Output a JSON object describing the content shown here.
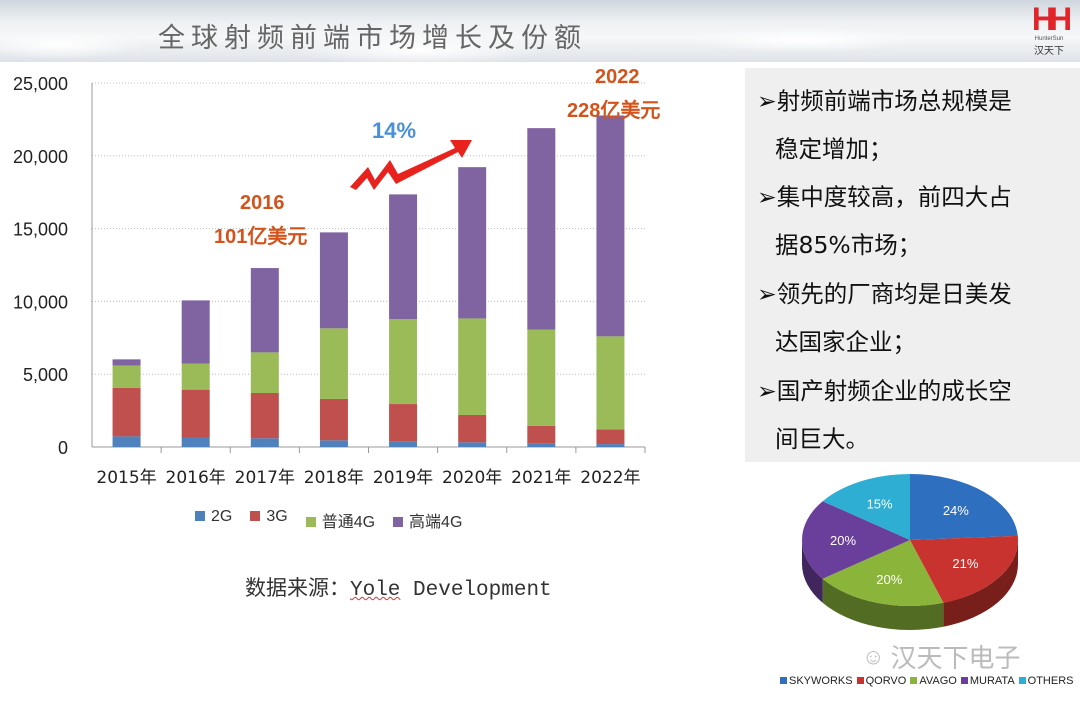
{
  "header": {
    "title": "全球射频前端市场增长及份额",
    "logo_en": "HunterSun",
    "logo_cn": "汉天下"
  },
  "colors": {
    "2G": "#4f81bd",
    "3G": "#c0504d",
    "4G": "#9bbb59",
    "hi4G": "#8064a2",
    "annotation": "#d2541c",
    "growth": "#4a90d9"
  },
  "chart_data": {
    "type": "bar",
    "stacked": true,
    "categories": [
      "2015年",
      "2016年",
      "2017年",
      "2018年",
      "2019年",
      "2020年",
      "2021年",
      "2022年"
    ],
    "series": [
      {
        "name": "2G",
        "values": [
          730,
          620,
          600,
          460,
          390,
          320,
          250,
          200
        ]
      },
      {
        "name": "3G",
        "values": [
          3340,
          3320,
          3110,
          2840,
          2560,
          1880,
          1210,
          1010
        ]
      },
      {
        "name": "普通4G",
        "values": [
          1530,
          1780,
          2790,
          4850,
          5840,
          6630,
          6600,
          6390
        ]
      },
      {
        "name": "高端4G",
        "values": [
          420,
          4350,
          5790,
          6590,
          8560,
          10390,
          13840,
          15170
        ]
      }
    ],
    "ylim": [
      0,
      25000
    ],
    "yticks": [
      "0",
      "5,000",
      "10,000",
      "15,000",
      "20,000",
      "25,000"
    ],
    "grid": true,
    "legend": "bottom",
    "annotations": {
      "y2016": "2016",
      "v2016": "101亿美元",
      "growth": "14%",
      "y2022": "2022",
      "v2022": "228亿美元"
    }
  },
  "source": {
    "prefix": "数据来源：",
    "name": "Yole",
    "rest": " Development"
  },
  "bullets": [
    "➢射频前端市场总规模是",
    "稳定增加；",
    "➢集中度较高，前四大占",
    "据85%市场；",
    "➢领先的厂商均是日美发",
    "达国家企业；",
    "➢国产射频企业的成长空",
    "间巨大。"
  ],
  "pie_data": {
    "type": "pie",
    "slices": [
      {
        "name": "SKYWORKS",
        "value": 24,
        "label": "24%",
        "color": "#2e6fc0"
      },
      {
        "name": "QORVO",
        "value": 21,
        "label": "21%",
        "color": "#c8332f"
      },
      {
        "name": "AVAGO",
        "value": 20,
        "label": "20%",
        "color": "#8ab43a"
      },
      {
        "name": "MURATA",
        "value": 20,
        "label": "20%",
        "color": "#6a3f9b"
      },
      {
        "name": "OTHERS",
        "value": 15,
        "label": "15%",
        "color": "#2eaed2"
      }
    ]
  },
  "watermark": "汉天下电子"
}
